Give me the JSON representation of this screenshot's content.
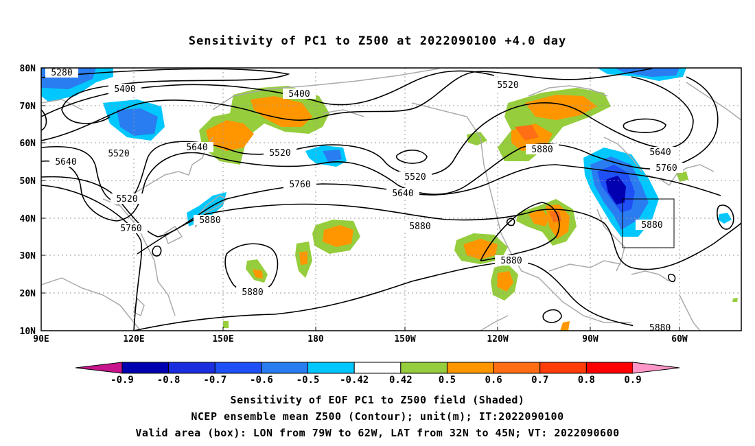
{
  "title": "Sensitivity of PC1 to Z500 at 2022090100 +4.0 day",
  "map": {
    "lat_labels": [
      "80N",
      "70N",
      "60N",
      "50N",
      "40N",
      "30N",
      "20N",
      "10N"
    ],
    "lon_labels": [
      "90E",
      "120E",
      "150E",
      "180",
      "150W",
      "120W",
      "90W",
      "60W"
    ],
    "contour_labels": [
      "5280",
      "5400",
      "5400",
      "5520",
      "5520",
      "5520",
      "5520",
      "5520",
      "5640",
      "5640",
      "5640",
      "5640",
      "5760",
      "5760",
      "5760",
      "5880",
      "5880",
      "5880",
      "5880",
      "5880",
      "5880"
    ],
    "valid_box": {
      "lon_from": "79W",
      "lon_to": "62W",
      "lat_from": "32N",
      "lat_to": "45N"
    }
  },
  "colorbar": {
    "labels": [
      "-0.9",
      "-0.8",
      "-0.7",
      "-0.6",
      "-0.5",
      "-0.42",
      "0.42",
      "0.5",
      "0.6",
      "0.7",
      "0.8",
      "0.9"
    ],
    "colors": [
      "#0000b0",
      "#1a2ee0",
      "#1e50f5",
      "#2a7df0",
      "#00c8ff",
      "#ffffff",
      "#96cd3c",
      "#ff9600",
      "#ff6e14",
      "#ff3c0a",
      "#ff0000"
    ],
    "low_arrow_color": "#c8148c",
    "high_arrow_color": "#ff96c8"
  },
  "captions": {
    "line1": "Sensitivity of EOF PC1 to Z500 field (Shaded)",
    "line2": "NCEP ensemble mean Z500 (Contour); unit(m); IT:2022090100",
    "line3": "Valid area (box): LON from 79W to 62W, LAT from 32N to 45N; VT: 2022090600"
  }
}
